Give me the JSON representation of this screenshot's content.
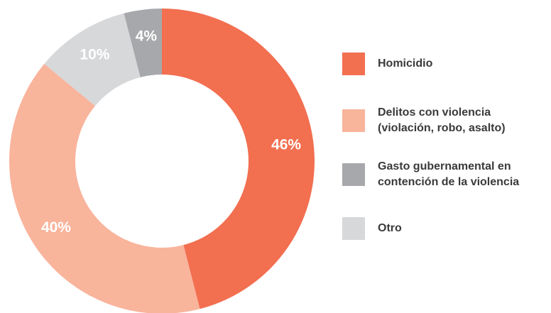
{
  "chart_data": {
    "type": "donut",
    "categories": [
      [
        "Homicidio"
      ],
      [
        "Delitos con violencia",
        "(violación, robo, asalto)"
      ],
      [
        "Otro"
      ],
      [
        "Gasto gubernamental en",
        "contención de la violencia"
      ]
    ],
    "values": [
      46,
      40,
      10,
      4
    ],
    "value_labels": [
      "46%",
      "40%",
      "10%",
      "4%"
    ],
    "colors": [
      "#f26f50",
      "#f9b49c",
      "#d7d8d9",
      "#a6a8ab"
    ],
    "legend_order": [
      0,
      1,
      3,
      2
    ]
  }
}
